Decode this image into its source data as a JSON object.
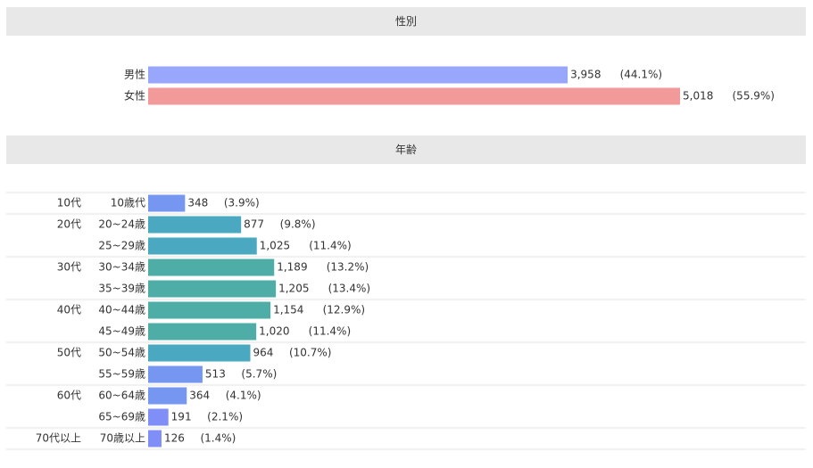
{
  "sections": [
    {
      "title": "性別"
    },
    {
      "title": "年齢"
    }
  ],
  "chart_data": [
    {
      "type": "bar",
      "orientation": "horizontal",
      "title": "性別",
      "categories": [
        "男性",
        "女性"
      ],
      "values": [
        3958,
        5018
      ],
      "value_labels": [
        "3,958",
        "5,018"
      ],
      "percent_labels": [
        "(44.1%)",
        "(55.9%)"
      ],
      "colors": [
        "#98a6fb",
        "#f29a9a"
      ],
      "grid": false
    },
    {
      "type": "bar",
      "orientation": "horizontal",
      "title": "年齢",
      "groups": [
        {
          "label": "10代",
          "categories": [
            "10歳代"
          ]
        },
        {
          "label": "20代",
          "categories": [
            "20~24歳",
            "25~29歳"
          ]
        },
        {
          "label": "30代",
          "categories": [
            "30~34歳",
            "35~39歳"
          ]
        },
        {
          "label": "40代",
          "categories": [
            "40~44歳",
            "45~49歳"
          ]
        },
        {
          "label": "50代",
          "categories": [
            "50~54歳",
            "55~59歳"
          ]
        },
        {
          "label": "60代",
          "categories": [
            "60~64歳",
            "65~69歳"
          ]
        },
        {
          "label": "70代以上",
          "categories": [
            "70歳以上"
          ]
        }
      ],
      "categories": [
        "10歳代",
        "20~24歳",
        "25~29歳",
        "30~34歳",
        "35~39歳",
        "40~44歳",
        "45~49歳",
        "50~54歳",
        "55~59歳",
        "60~64歳",
        "65~69歳",
        "70歳以上"
      ],
      "values": [
        348,
        877,
        1025,
        1189,
        1205,
        1154,
        1020,
        964,
        513,
        364,
        191,
        126
      ],
      "value_labels": [
        "348",
        "877",
        "1,025",
        "1,189",
        "1,205",
        "1,154",
        "1,020",
        "964",
        "513",
        "364",
        "191",
        "126"
      ],
      "percent_labels": [
        "(3.9%)",
        "(9.8%)",
        "(11.4%)",
        "(13.2%)",
        "(13.4%)",
        "(12.9%)",
        "(11.4%)",
        "(10.7%)",
        "(5.7%)",
        "(4.1%)",
        "(2.1%)",
        "(1.4%)"
      ],
      "colors": [
        "#7597f2",
        "#4aa8c0",
        "#4aa8c0",
        "#4fada7",
        "#4fada7",
        "#4fada7",
        "#4fada7",
        "#4aa8c0",
        "#7597f2",
        "#7597f2",
        "#7f8ff7",
        "#7f8ff7"
      ],
      "grid": false
    }
  ]
}
